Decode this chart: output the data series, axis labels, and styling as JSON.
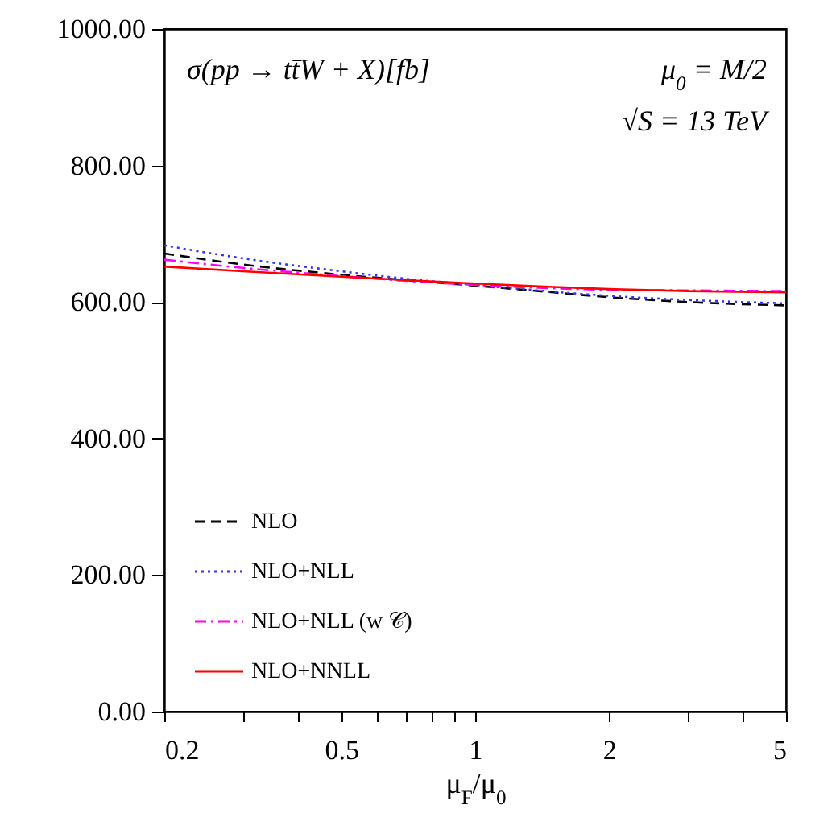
{
  "chart_data": {
    "type": "line",
    "xlabel": "μ$_{F}$/μ$_{0}$",
    "log": "x",
    "xlim": [
      0.2,
      5
    ],
    "xticks": [
      0.2,
      {
        "value": 0.3,
        "label": null
      },
      {
        "value": 0.4,
        "label": null
      },
      0.5,
      {
        "value": 0.6,
        "label": null
      },
      {
        "value": 0.7,
        "label": null
      },
      {
        "value": 0.8,
        "label": null
      },
      {
        "value": 0.9,
        "label": null
      },
      1,
      2,
      {
        "value": 3,
        "label": null
      },
      {
        "value": 4,
        "label": null
      },
      5
    ],
    "ylim": [
      0,
      1000
    ],
    "yticks": [
      {
        "value": 0,
        "label": "0.00"
      },
      {
        "value": 200,
        "label": "200.00"
      },
      {
        "value": 400,
        "label": "400.00"
      },
      {
        "value": 600,
        "label": "600.00"
      },
      {
        "value": 800,
        "label": "800.00"
      },
      {
        "value": 1000,
        "label": "1000.00"
      }
    ],
    "x": [
      0.2,
      0.3,
      0.5,
      0.7,
      1,
      1.5,
      2,
      3,
      5
    ],
    "series": [
      {
        "name": "NLO",
        "color": "#000000",
        "line_style": "dashed",
        "values": [
          671,
          655,
          640,
          632,
          624,
          614,
          607,
          600,
          595
        ]
      },
      {
        "name": "NLO+NLL",
        "color": "#3333ff",
        "line_style": "dotted",
        "values": [
          683,
          664,
          645,
          634,
          625,
          615,
          609,
          603,
          598
        ]
      },
      {
        "name": "NLO+NLL (w 𝒞)",
        "color": "#ff00ff",
        "line_style": "dashdot",
        "values": [
          662,
          650,
          638,
          631,
          625,
          620,
          618,
          617,
          616
        ]
      },
      {
        "name": "NLO+NNLL",
        "color": "#ff0000",
        "line_style": "solid",
        "values": [
          652,
          645,
          637,
          632,
          627,
          622,
          619,
          616,
          614
        ]
      }
    ],
    "legend": "bottom left",
    "grid": false,
    "annotations": [
      "σ(pp → tt̄W + X)[fb]",
      "μ$_{0}$ = M/2",
      "√S = 13 TeV"
    ]
  }
}
